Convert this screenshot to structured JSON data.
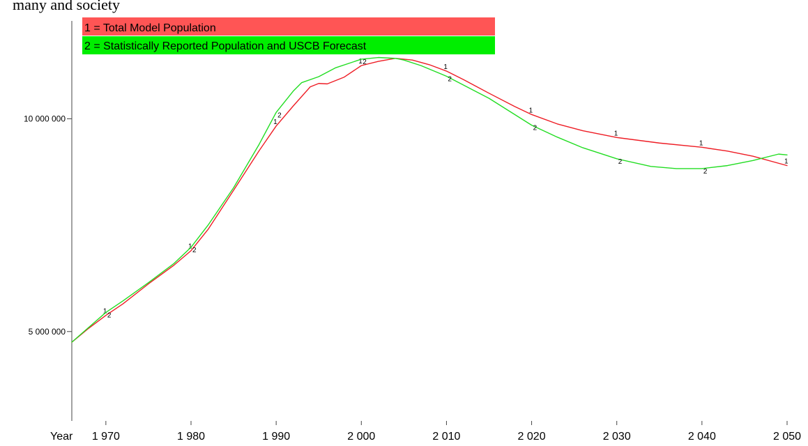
{
  "top_fragment": "many and society",
  "chart_data": {
    "type": "line",
    "x_label_prefix": "Year",
    "xlim": [
      1966,
      2050
    ],
    "ylim": [
      2900000,
      12300000
    ],
    "x_ticks": [
      {
        "value": 1970,
        "label": "1 970"
      },
      {
        "value": 1980,
        "label": "1 980"
      },
      {
        "value": 1990,
        "label": "1 990"
      },
      {
        "value": 2000,
        "label": "2 000"
      },
      {
        "value": 2010,
        "label": "2 010"
      },
      {
        "value": 2020,
        "label": "2 020"
      },
      {
        "value": 2030,
        "label": "2 030"
      },
      {
        "value": 2040,
        "label": "2 040"
      },
      {
        "value": 2050,
        "label": "2 050"
      }
    ],
    "y_ticks": [
      {
        "value": 5000000,
        "label": "5 000 000"
      },
      {
        "value": 10000000,
        "label": "10 000 000"
      }
    ],
    "legend": [
      {
        "text": "1 = Total Model Population",
        "color": "#ff5555"
      },
      {
        "text": "2 = Statistically Reported Population and USCB Forecast",
        "color": "#00ee00"
      }
    ],
    "series": [
      {
        "name": "Total Model Population",
        "marker": "1",
        "color": "#ee1c24",
        "x": [
          1966,
          1968,
          1970,
          1972,
          1975,
          1978,
          1980,
          1982,
          1985,
          1988,
          1990,
          1992,
          1994,
          1995,
          1996,
          1998,
          2000,
          2002,
          2004,
          2006,
          2008,
          2010,
          2012,
          2015,
          2018,
          2020,
          2023,
          2026,
          2030,
          2035,
          2040,
          2043,
          2046,
          2050
        ],
        "values": [
          4750000,
          5080000,
          5380000,
          5650000,
          6120000,
          6560000,
          6900000,
          7400000,
          8320000,
          9250000,
          9830000,
          10300000,
          10750000,
          10830000,
          10820000,
          10980000,
          11250000,
          11350000,
          11420000,
          11380000,
          11270000,
          11120000,
          10920000,
          10600000,
          10290000,
          10100000,
          9880000,
          9720000,
          9560000,
          9430000,
          9330000,
          9240000,
          9120000,
          8900000
        ],
        "marker_x": [
          1970,
          1980,
          1990,
          2000,
          2010,
          2020,
          2030,
          2040,
          2050
        ]
      },
      {
        "name": "Statistically Reported Population and USCB Forecast",
        "marker": "2",
        "color": "#22dd22",
        "x": [
          1966,
          1968,
          1970,
          1972,
          1975,
          1978,
          1980,
          1982,
          1985,
          1988,
          1990,
          1992,
          1993,
          1995,
          1997,
          2000,
          2002,
          2004,
          2005,
          2007,
          2010,
          2015,
          2020,
          2023,
          2026,
          2030,
          2034,
          2037,
          2040,
          2043,
          2046,
          2049,
          2050
        ],
        "values": [
          4750000,
          5100000,
          5450000,
          5720000,
          6150000,
          6600000,
          6980000,
          7500000,
          8380000,
          9400000,
          10150000,
          10650000,
          10850000,
          10990000,
          11200000,
          11400000,
          11440000,
          11420000,
          11380000,
          11250000,
          11000000,
          10480000,
          9850000,
          9570000,
          9320000,
          9060000,
          8880000,
          8830000,
          8830000,
          8900000,
          9020000,
          9170000,
          9150000
        ],
        "marker_x": [
          1970,
          1980,
          1990,
          2000,
          2010,
          2020,
          2030,
          2040
        ]
      }
    ]
  }
}
